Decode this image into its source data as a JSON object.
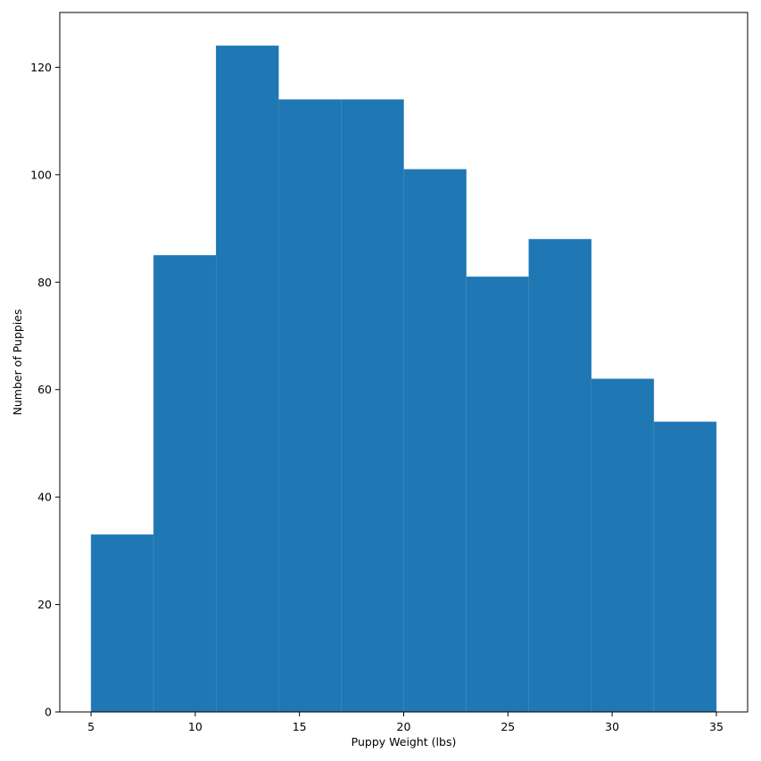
{
  "chart_data": {
    "type": "bar",
    "title": "",
    "xlabel": "Puppy Weight (lbs)",
    "ylabel": "Number of Puppies",
    "bins": [
      {
        "x0": 5,
        "x1": 8,
        "count": 33
      },
      {
        "x0": 8,
        "x1": 11,
        "count": 85
      },
      {
        "x0": 11,
        "x1": 14,
        "count": 124
      },
      {
        "x0": 14,
        "x1": 17,
        "count": 114
      },
      {
        "x0": 17,
        "x1": 20,
        "count": 114
      },
      {
        "x0": 20,
        "x1": 23,
        "count": 101
      },
      {
        "x0": 23,
        "x1": 26,
        "count": 81
      },
      {
        "x0": 26,
        "x1": 29,
        "count": 88
      },
      {
        "x0": 29,
        "x1": 32,
        "count": 62
      },
      {
        "x0": 32,
        "x1": 35,
        "count": 54
      }
    ],
    "xlim": [
      3.5,
      36.5
    ],
    "ylim": [
      0,
      130.2
    ],
    "xticks": [
      5,
      10,
      15,
      20,
      25,
      30,
      35
    ],
    "yticks": [
      0,
      20,
      40,
      60,
      80,
      100,
      120
    ],
    "bar_color": "#1f77b4",
    "edge_color": "#4a8fc4",
    "grid": false,
    "legend": "none"
  }
}
